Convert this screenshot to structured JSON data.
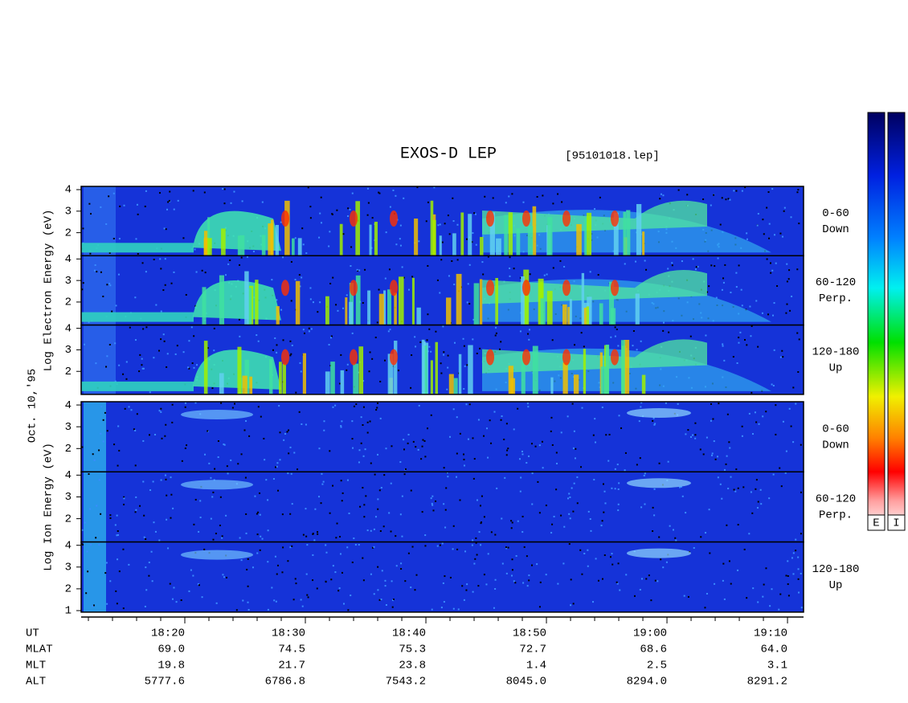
{
  "chart_data": {
    "type": "spectrogram",
    "title": "EXOS-D LEP",
    "subtitle": "[95101018.lep]",
    "date_label": "Oct. 10,'95",
    "xlim": [
      1091.4,
      1151.33
    ],
    "xticks": [
      {
        "value": 1100,
        "label": "18:20"
      },
      {
        "value": 1110,
        "label": "18:30"
      },
      {
        "value": 1120,
        "label": "18:40"
      },
      {
        "value": 1130,
        "label": "18:50"
      },
      {
        "value": 1140,
        "label": "19:00"
      },
      {
        "value": 1150,
        "label": "19:10"
      }
    ],
    "xminorticks": [
      1092,
      1094,
      1096,
      1098,
      1102,
      1104,
      1106,
      1108,
      1112,
      1114,
      1116,
      1118,
      1122,
      1124,
      1126,
      1128,
      1132,
      1134,
      1136,
      1138,
      1142,
      1144,
      1146,
      1148
    ],
    "groups": [
      {
        "ylabel": "Log Electron Energy (eV)",
        "panels": [
          {
            "label": [
              "0-60",
              "Down"
            ],
            "ylim": [
              0.93,
              4.15
            ],
            "yticks": [
              2,
              3,
              4
            ]
          },
          {
            "label": [
              "60-120",
              "Perp."
            ],
            "ylim": [
              0.93,
              4.15
            ],
            "yticks": [
              2,
              3,
              4
            ]
          },
          {
            "label": [
              "120-180",
              "Up"
            ],
            "ylim": [
              0.93,
              4.15
            ],
            "yticks": [
              2,
              3,
              4
            ]
          }
        ]
      },
      {
        "ylabel": "Log Ion Energy (eV)",
        "panels": [
          {
            "label": [
              "0-60",
              "Down"
            ],
            "ylim": [
              0.93,
              4.15
            ],
            "yticks": [
              2,
              3,
              4
            ]
          },
          {
            "label": [
              "60-120",
              "Perp."
            ],
            "ylim": [
              0.93,
              4.15
            ],
            "yticks": [
              2,
              3,
              4
            ]
          },
          {
            "label": [
              "120-180",
              "Up"
            ],
            "ylim": [
              0.93,
              4.15
            ],
            "yticks": [
              1,
              2,
              3,
              4
            ]
          }
        ]
      }
    ],
    "x_row_label": "UT",
    "rows": [
      {
        "name": "MLAT",
        "values": [
          "69.0",
          "74.5",
          "75.3",
          "72.7",
          "68.6",
          "64.0"
        ]
      },
      {
        "name": "MLT",
        "values": [
          "19.8",
          "21.7",
          "23.8",
          "1.4",
          "2.5",
          "3.1"
        ]
      },
      {
        "name": "ALT",
        "values": [
          "5777.6",
          "6786.8",
          "7543.2",
          "8045.0",
          "8294.0",
          "8291.2"
        ]
      }
    ],
    "colorbars": [
      "E",
      "I"
    ]
  }
}
